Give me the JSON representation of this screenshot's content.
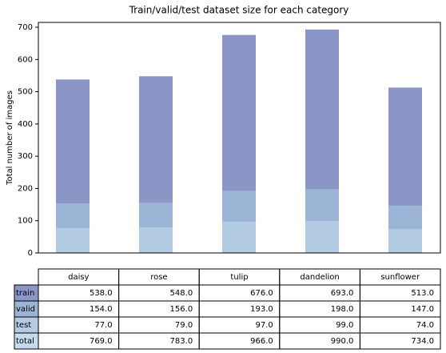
{
  "chart_data": {
    "type": "bar",
    "title": "Train/valid/test dataset size for each category",
    "ylabel": "Total number of images",
    "categories": [
      "daisy",
      "rose",
      "tulip",
      "dandelion",
      "sunflower"
    ],
    "series": [
      {
        "name": "train",
        "color": "#8c96c6",
        "values": [
          538,
          548,
          676,
          693,
          513
        ],
        "value_labels": [
          "538.0",
          "548.0",
          "676.0",
          "693.0",
          "513.0"
        ]
      },
      {
        "name": "valid",
        "color": "#9cb4d6",
        "values": [
          154,
          156,
          193,
          198,
          147
        ],
        "value_labels": [
          "154.0",
          "156.0",
          "193.0",
          "198.0",
          "147.0"
        ]
      },
      {
        "name": "test",
        "color": "#b3cbe3",
        "values": [
          77,
          79,
          97,
          99,
          74
        ],
        "value_labels": [
          "77.0",
          "79.0",
          "97.0",
          "99.0",
          "74.0"
        ]
      }
    ],
    "total": {
      "name": "total",
      "values": [
        769,
        783,
        966,
        990,
        734
      ],
      "value_labels": [
        "769.0",
        "783.0",
        "966.0",
        "990.0",
        "734.0"
      ]
    },
    "ylim": [
      0,
      715
    ],
    "yticks": [
      0,
      100,
      200,
      300,
      400,
      500,
      600,
      700
    ]
  }
}
